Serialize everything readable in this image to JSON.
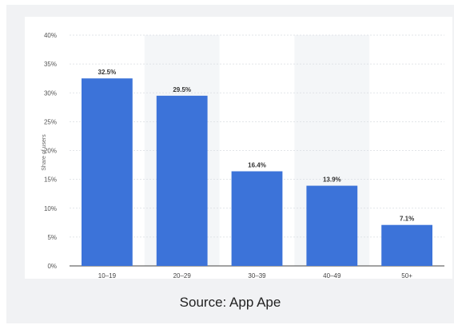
{
  "chart_data": {
    "type": "bar",
    "categories": [
      "10–19",
      "20–29",
      "30–39",
      "40–49",
      "50+"
    ],
    "values": [
      32.5,
      29.5,
      16.4,
      13.9,
      7.1
    ],
    "value_labels": [
      "32.5%",
      "29.5%",
      "16.4%",
      "13.9%",
      "7.1%"
    ],
    "ylabel": "Share of users",
    "xlabel": "",
    "ylim": [
      0,
      40
    ],
    "yticks": [
      "0%",
      "5%",
      "10%",
      "15%",
      "20%",
      "25%",
      "30%",
      "35%",
      "40%"
    ],
    "grid": true,
    "bar_color": "#3c73d9",
    "alt_band_color": "#f4f6f8"
  },
  "source_text": "Source: App Ape"
}
